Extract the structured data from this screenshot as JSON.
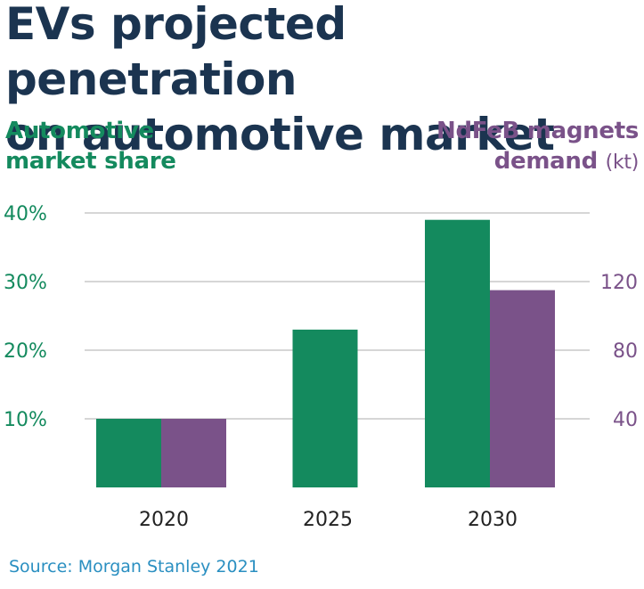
{
  "title_lines": [
    "EVs projected penetration",
    "on automotive market"
  ],
  "colors": {
    "title": "#1b3450",
    "green": "#148a5e",
    "purple": "#7a5289",
    "grid": "#c8c8c8",
    "axis_text_dark": "#222222",
    "source": "#2a8fc1"
  },
  "chart_data": {
    "type": "bar",
    "title": "EVs projected penetration on automotive market",
    "categories": [
      "2020",
      "2025",
      "2030"
    ],
    "series": [
      {
        "name": "Automotive market share",
        "axis": "left",
        "unit": "%",
        "values": [
          10,
          23,
          39
        ]
      },
      {
        "name": "NdFeB magnets demand (kt)",
        "axis": "right",
        "unit": "kt",
        "values": [
          40,
          null,
          115
        ]
      }
    ],
    "left_axis": {
      "label_lines": [
        "Automotive",
        "market share"
      ],
      "ylim": [
        0,
        40
      ],
      "ticks": [
        10,
        20,
        30,
        40
      ],
      "tick_labels": [
        "10%",
        "20%",
        "30%",
        "40%"
      ]
    },
    "right_axis": {
      "label_lines": [
        "NdFeB magnets",
        "demand"
      ],
      "unit_label": "(kt)",
      "ylim": [
        0,
        160
      ],
      "ticks": [
        40,
        80,
        120
      ],
      "tick_labels": [
        "40",
        "80",
        "120"
      ]
    },
    "grid": true,
    "legend": "none",
    "source": "Source: Morgan Stanley 2021"
  }
}
